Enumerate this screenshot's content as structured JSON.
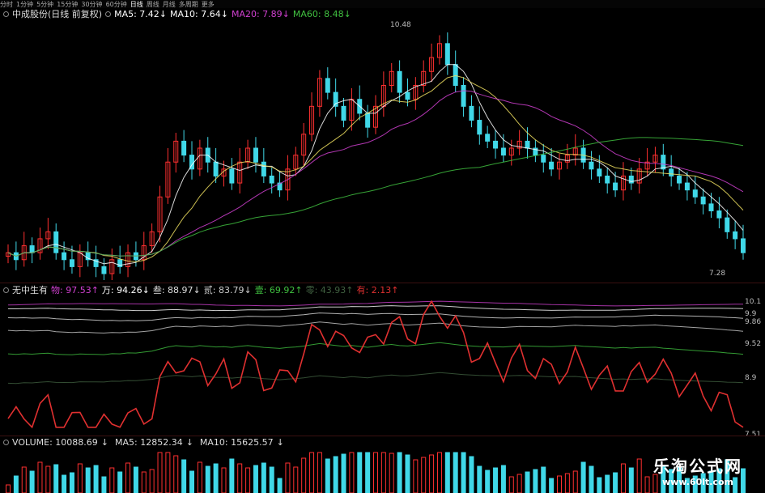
{
  "tabs": [
    "分时",
    "1分钟",
    "5分钟",
    "15分钟",
    "30分钟",
    "60分钟",
    "日线",
    "周线",
    "月线",
    "多周期",
    "更多"
  ],
  "active_tab": 6,
  "stock_title": "中成股份(日线 前复权)",
  "ma": [
    {
      "label": "MA5: 7.42",
      "arrow": "↓",
      "color": "#ffffff"
    },
    {
      "label": "MA10: 7.64",
      "arrow": "↓",
      "color": "#ffffff"
    },
    {
      "label": "MA20: 7.89",
      "arrow": "↓",
      "color": "#d040d0"
    },
    {
      "label": "MA60: 8.48",
      "arrow": "↓",
      "color": "#40c040"
    }
  ],
  "price_high_label": "10.48",
  "price_low_label": "7.28",
  "indicator": {
    "name": "无中生有",
    "items": [
      {
        "key": "物",
        "value": "97.53",
        "arrow": "↑",
        "color": "#d040d0"
      },
      {
        "key": "万",
        "value": "94.26",
        "arrow": "↓",
        "color": "#ffffff"
      },
      {
        "key": "叁",
        "value": "88.97",
        "arrow": "↓",
        "color": "#dddddd"
      },
      {
        "key": "贰",
        "value": "83.79",
        "arrow": "↓",
        "color": "#cccccc"
      },
      {
        "key": "壹",
        "value": "69.92",
        "arrow": "↑",
        "color": "#40c040"
      },
      {
        "key": "零",
        "value": "43.93",
        "arrow": "↑",
        "color": "#406040"
      },
      {
        "key": "有",
        "value": "2.13",
        "arrow": "↑",
        "color": "#e03030"
      }
    ],
    "right_labels": [
      "10.1",
      "9.9",
      "9.86",
      "9.52",
      "8.9",
      "7.51"
    ]
  },
  "volume": {
    "label": "VOLUME: 10088.69",
    "ma5": "MA5: 12852.34",
    "ma10": "MA10: 15625.57",
    "arrow": "↓"
  },
  "brand": {
    "title": "乐淘公式网",
    "url": "www.60lt.com"
  },
  "chart_data": {
    "type": "candlestick",
    "close_approx": [
      7.3,
      7.2,
      7.4,
      7.3,
      7.5,
      7.6,
      7.3,
      7.2,
      7.1,
      7.3,
      7.2,
      7.1,
      7.0,
      7.2,
      7.1,
      7.3,
      7.2,
      7.4,
      7.6,
      8.1,
      8.6,
      8.9,
      8.7,
      8.5,
      8.8,
      8.6,
      8.4,
      8.5,
      8.3,
      8.6,
      8.8,
      8.6,
      8.4,
      8.3,
      8.2,
      8.5,
      8.7,
      9.0,
      9.4,
      9.8,
      9.6,
      9.4,
      9.2,
      9.5,
      9.3,
      9.1,
      9.4,
      9.7,
      9.9,
      9.6,
      9.5,
      9.7,
      9.9,
      10.1,
      10.3,
      10.0,
      9.7,
      9.4,
      9.2,
      9.0,
      8.9,
      8.8,
      8.7,
      8.8,
      8.9,
      8.8,
      8.7,
      8.6,
      8.5,
      8.6,
      8.7,
      8.8,
      8.6,
      8.5,
      8.4,
      8.3,
      8.2,
      8.4,
      8.3,
      8.5,
      8.6,
      8.7,
      8.5,
      8.4,
      8.3,
      8.2,
      8.1,
      8.0,
      7.9,
      7.8,
      7.6,
      7.5,
      7.3
    ]
  }
}
